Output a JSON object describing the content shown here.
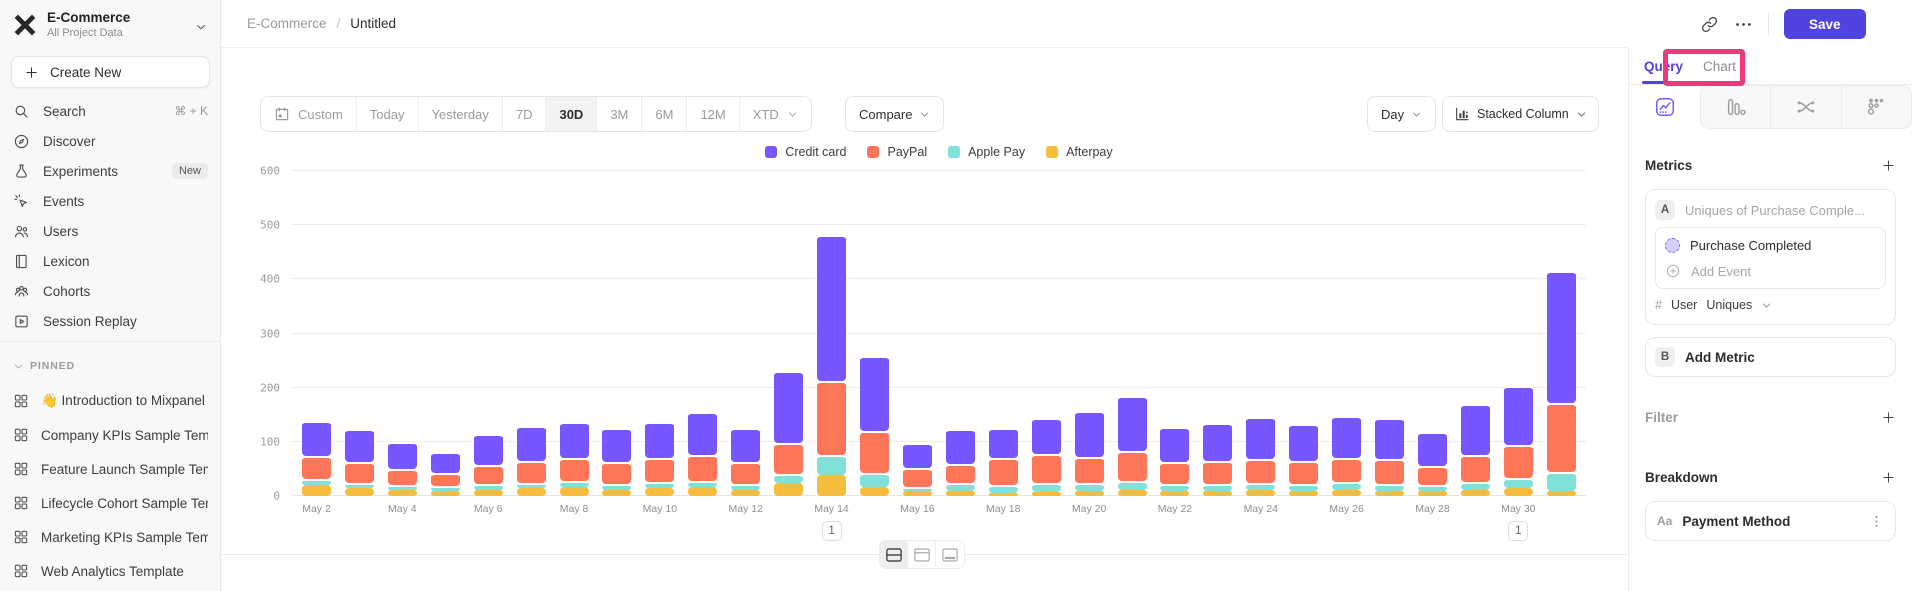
{
  "colors": {
    "accent": "#4f44e0",
    "highlight_pink": "#f5357c",
    "sidebar_bg": "#f8f8f7"
  },
  "sidebar": {
    "project": {
      "name": "E-Commerce",
      "subtitle": "All Project Data"
    },
    "create_new": "Create New",
    "menu": [
      {
        "label": "Search",
        "icon": "search-icon",
        "shortcut": "⌘ + K"
      },
      {
        "label": "Discover",
        "icon": "discover-icon"
      },
      {
        "label": "Experiments",
        "icon": "experiments-icon",
        "badge": "New"
      },
      {
        "label": "Events",
        "icon": "events-icon"
      },
      {
        "label": "Users",
        "icon": "users-icon"
      },
      {
        "label": "Lexicon",
        "icon": "lexicon-icon"
      },
      {
        "label": "Cohorts",
        "icon": "cohorts-icon"
      },
      {
        "label": "Session Replay",
        "icon": "session-replay-icon"
      }
    ],
    "pinned_header": "PINNED",
    "pinned": [
      {
        "emoji": "👋",
        "label": "Introduction to Mixpanel Board"
      },
      {
        "label": "Company KPIs Sample Template"
      },
      {
        "label": "Feature Launch Sample Template"
      },
      {
        "label": "Lifecycle Cohort Sample Template"
      },
      {
        "label": "Marketing KPIs Sample Template"
      },
      {
        "label": "Web Analytics Template"
      }
    ]
  },
  "header": {
    "breadcrumb": {
      "project": "E-Commerce",
      "separator": "/",
      "page": "Untitled"
    },
    "save_label": "Save"
  },
  "toolbar": {
    "date_ranges": [
      {
        "label": "Custom",
        "icon": "calendar-icon"
      },
      {
        "label": "Today"
      },
      {
        "label": "Yesterday"
      },
      {
        "label": "7D"
      },
      {
        "label": "30D",
        "active": true
      },
      {
        "label": "3M"
      },
      {
        "label": "6M"
      },
      {
        "label": "12M"
      },
      {
        "label": "XTD",
        "chevron": true
      }
    ],
    "active_range": "30D",
    "compare_label": "Compare",
    "granularity_label": "Day",
    "chart_type_label": "Stacked Column"
  },
  "chart_data": {
    "type": "bar",
    "stacked": true,
    "x": [
      "May 2",
      "May 3",
      "May 4",
      "May 5",
      "May 6",
      "May 7",
      "May 8",
      "May 9",
      "May 10",
      "May 11",
      "May 12",
      "May 13",
      "May 14",
      "May 15",
      "May 16",
      "May 17",
      "May 18",
      "May 19",
      "May 20",
      "May 21",
      "May 22",
      "May 23",
      "May 24",
      "May 25",
      "May 26",
      "May 27",
      "May 28",
      "May 29",
      "May 30",
      "May 31"
    ],
    "x_tick_every": 2,
    "series": [
      {
        "name": "Credit card",
        "color": "#7856FF",
        "values": [
          65,
          62,
          49,
          38,
          58,
          66,
          67,
          64,
          67,
          79,
          64,
          134,
          268,
          138,
          46,
          64,
          56,
          66,
          85,
          100,
          66,
          71,
          78,
          69,
          78,
          76,
          63,
          93,
          110,
          244
        ]
      },
      {
        "name": "PayPal",
        "color": "#FF7557",
        "values": [
          42,
          38,
          30,
          25,
          35,
          40,
          42,
          40,
          44,
          48,
          40,
          57,
          138,
          78,
          35,
          36,
          50,
          54,
          48,
          56,
          40,
          42,
          44,
          42,
          44,
          46,
          36,
          50,
          60,
          128
        ]
      },
      {
        "name": "Apple Pay",
        "color": "#80E1D9",
        "values": [
          12,
          10,
          8,
          8,
          10,
          10,
          12,
          10,
          12,
          12,
          10,
          16,
          37,
          26,
          7,
          15,
          14,
          17,
          14,
          16,
          12,
          12,
          12,
          12,
          14,
          12,
          10,
          14,
          20,
          34
        ]
      },
      {
        "name": "Afterpay",
        "color": "#F8BC3C",
        "values": [
          20,
          14,
          12,
          10,
          12,
          14,
          16,
          12,
          14,
          16,
          12,
          24,
          38,
          16,
          9,
          9,
          6,
          7,
          10,
          12,
          10,
          10,
          12,
          10,
          12,
          10,
          10,
          12,
          14,
          10
        ]
      }
    ],
    "ylim": [
      0,
      600
    ],
    "yticks": [
      0,
      100,
      200,
      300,
      400,
      500,
      600
    ],
    "legend_position": "top",
    "grid": true,
    "annotation_markers": [
      {
        "x": "May 14",
        "label": "1"
      },
      {
        "x": "May 30",
        "label": "1"
      }
    ]
  },
  "footer_toggles": [
    {
      "icon": "layout-split-icon",
      "active": true
    },
    {
      "icon": "layout-top-icon"
    },
    {
      "icon": "layout-bottom-icon"
    }
  ],
  "panel": {
    "tabs": [
      {
        "label": "Query",
        "active": true
      },
      {
        "label": "Chart",
        "active": false
      }
    ],
    "report_types": [
      {
        "icon": "insights-icon",
        "active": true
      },
      {
        "icon": "funnels-icon"
      },
      {
        "icon": "flows-icon"
      },
      {
        "icon": "retention-icon"
      }
    ],
    "metrics": {
      "title": "Metrics",
      "metric_a": {
        "badge": "A",
        "placeholder": "Uniques of Purchase Comple...",
        "event": "Purchase Completed",
        "add_event": "Add Event",
        "count_prefix": "#",
        "count_entity": "User",
        "count_type": "Uniques"
      },
      "metric_b": {
        "badge": "B",
        "label": "Add Metric"
      }
    },
    "filter": {
      "title": "Filter"
    },
    "breakdown": {
      "title": "Breakdown",
      "item": {
        "badge": "Aa",
        "label": "Payment Method"
      }
    }
  },
  "annotation": {
    "highlight_target": "chart-tab",
    "color": "#f5357c"
  }
}
